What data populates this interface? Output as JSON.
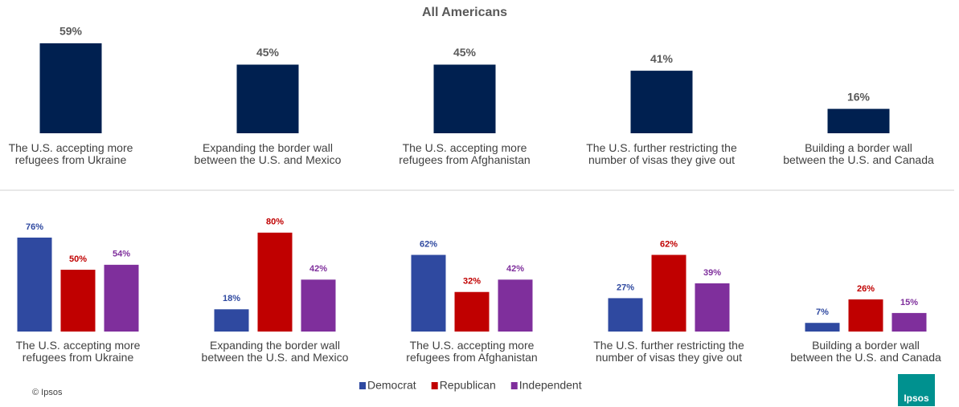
{
  "chart_data": [
    {
      "type": "bar",
      "title": "All Americans",
      "categories": [
        "The U.S. accepting more refugees from Ukraine",
        "Expanding the border wall between the U.S. and Mexico",
        "The U.S. accepting more refugees from Afghanistan",
        "The U.S. further restricting the number of visas they give out",
        "Building a border wall between the U.S. and Canada"
      ],
      "values": [
        59,
        45,
        45,
        41,
        16
      ],
      "value_labels": [
        "59%",
        "45%",
        "45%",
        "41%",
        "16%"
      ],
      "color": "#002050"
    },
    {
      "type": "grouped_bar",
      "categories": [
        "The U.S. accepting more refugees from Ukraine",
        "Expanding the border wall between the U.S. and Mexico",
        "The U.S. accepting more refugees from Afghanistan",
        "The U.S. further restricting the number of visas they give out",
        "Building a border wall between the U.S. and Canada"
      ],
      "series": [
        {
          "name": "Democrat",
          "color": "#2f49a0",
          "values": [
            76,
            18,
            62,
            27,
            7
          ],
          "value_labels": [
            "76%",
            "18%",
            "62%",
            "27%",
            "7%"
          ]
        },
        {
          "name": "Republican",
          "color": "#c00000",
          "values": [
            50,
            80,
            32,
            62,
            26
          ],
          "value_labels": [
            "50%",
            "80%",
            "32%",
            "62%",
            "26%"
          ]
        },
        {
          "name": "Independent",
          "color": "#7f2f9c",
          "values": [
            54,
            42,
            42,
            39,
            15
          ],
          "value_labels": [
            "54%",
            "42%",
            "42%",
            "39%",
            "15%"
          ]
        }
      ],
      "legend": "bottom"
    }
  ],
  "footer": {
    "copyright": "© Ipsos",
    "logo": "Ipsos"
  }
}
